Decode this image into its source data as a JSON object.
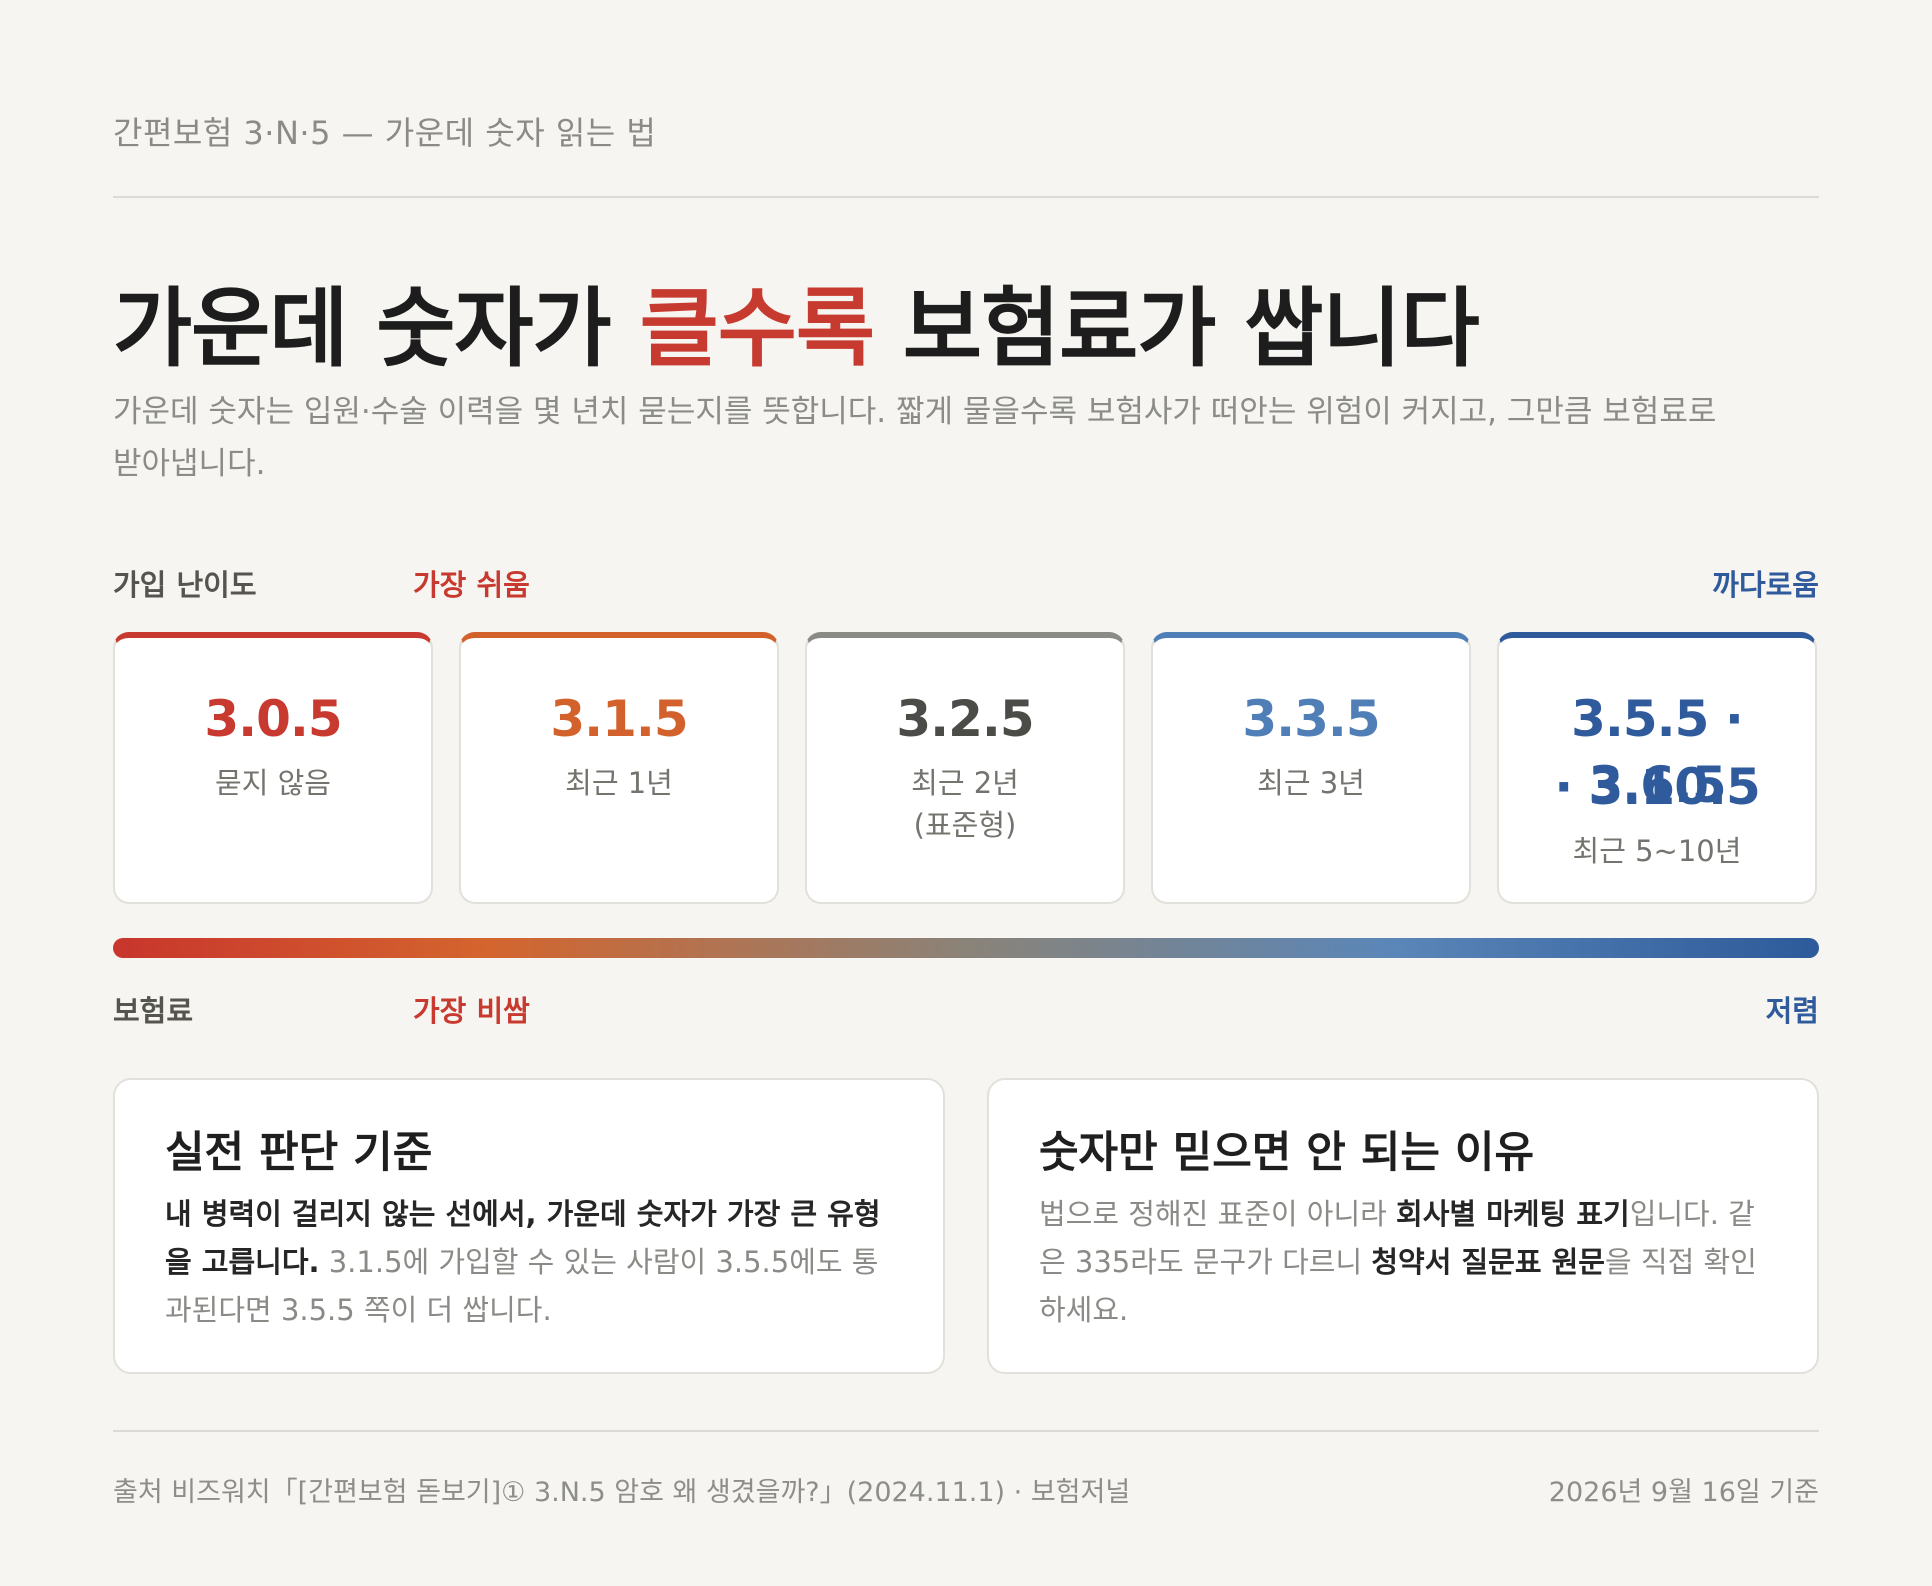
{
  "header": {
    "eyebrow": "간편보험 3·N·5 — 가운데 숫자 읽는 법",
    "headline_before": "가운데 숫자가 ",
    "headline_accent": "클수록",
    "headline_after": " 보험료가 쌉니다",
    "lead": "가운데 숫자는 입원·수술 이력을 몇 년치 묻는지를 뜻합니다. 짧게 물을수록 보험사가 떠안는 위험이 커지고, 그만큼 보험료로 받아냅니다."
  },
  "difficulty_axis": {
    "label": "가입 난이도",
    "low": "가장 쉬움",
    "high": "까다로움"
  },
  "premium_axis": {
    "label": "보험료",
    "low": "가장 비쌈",
    "high": "저렴"
  },
  "cards": [
    {
      "code": "3.0.5",
      "desc": "묻지 않음",
      "color": "#c8392f"
    },
    {
      "code": "3.1.5",
      "desc": "최근 1년",
      "color": "#d2612c"
    },
    {
      "code": "3.2.5",
      "desc": "최근 2년",
      "desc2": "(표준형)",
      "color": "#4b4b47"
    },
    {
      "code": "3.3.5",
      "desc": "최근 3년",
      "color": "#4f7fb6"
    },
    {
      "code_line1": "3.5.5 · 3.6.5",
      "code_line2": "· 3.10.5",
      "desc": "최근 5~10년",
      "color": "#2f5a9c"
    }
  ],
  "info_left": {
    "title": "실전 판단 기준",
    "bold": "내 병력이 걸리지 않는 선에서, 가운데 숫자가 가장 큰 유형을 고릅니다.",
    "text": " 3.1.5에 가입할 수 있는 사람이 3.5.5에도 통과된다면 3.5.5 쪽이 더 쌉니다."
  },
  "info_right": {
    "title": "숫자만 믿으면 안 되는 이유",
    "t1": "법으로 정해진 표준이 아니라 ",
    "b1": "회사별 마케팅 표기",
    "t2": "입니다. 같은 335라도 문구가 다르니 ",
    "b2": "청약서 질문표 원문",
    "t3": "을 직접 확인하세요."
  },
  "footer": {
    "source": "출처 비즈워치「[간편보험 돋보기]① 3.N.5 암호 왜 생겼을까?」(2024.11.1) · 보험저널",
    "date": "2026년 9월 16일 기준"
  }
}
